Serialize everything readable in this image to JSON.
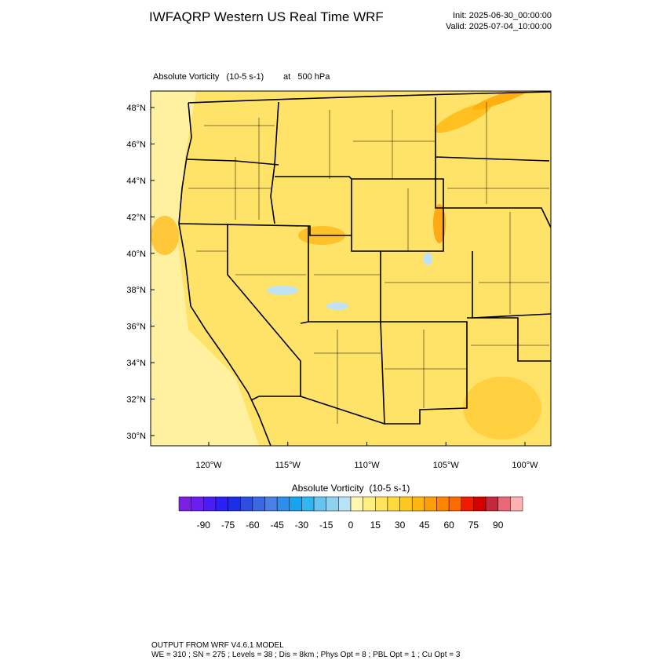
{
  "header": {
    "title": "IWFAQRP Western US Real Time WRF",
    "init": "Init: 2025-06-30_00:00:00",
    "valid": "Valid: 2025-07-04_10:00:00"
  },
  "plot": {
    "field_title": "Absolute Vorticity   (10-5 s-1)",
    "level_title": "at   500 hPa",
    "lat_ticks": [
      {
        "value": 48,
        "label": "48°N"
      },
      {
        "value": 46,
        "label": "46°N"
      },
      {
        "value": 44,
        "label": "44°N"
      },
      {
        "value": 42,
        "label": "42°N"
      },
      {
        "value": 40,
        "label": "40°N"
      },
      {
        "value": 38,
        "label": "38°N"
      },
      {
        "value": 36,
        "label": "36°N"
      },
      {
        "value": 34,
        "label": "34°N"
      },
      {
        "value": 32,
        "label": "32°N"
      },
      {
        "value": 30,
        "label": "30°N"
      }
    ],
    "lon_ticks": [
      {
        "value": -120,
        "label": "120°W"
      },
      {
        "value": -115,
        "label": "115°W"
      },
      {
        "value": -110,
        "label": "110°W"
      },
      {
        "value": -105,
        "label": "105°W"
      },
      {
        "value": -100,
        "label": "100°W"
      }
    ]
  },
  "colorbar": {
    "title": "Absolute Vorticity  (10-5 s-1)",
    "labels": [
      -90,
      -75,
      -60,
      -45,
      -30,
      -15,
      0,
      15,
      30,
      45,
      60,
      75,
      90
    ],
    "colors": [
      "#7b1fe0",
      "#6a1ef0",
      "#4b1df5",
      "#2a1ff5",
      "#1c2ee8",
      "#2c4fe0",
      "#3a68e0",
      "#4a7fe6",
      "#2f8fe8",
      "#1aa3ec",
      "#33b5f0",
      "#66c4ef",
      "#8fd2f0",
      "#b8e2f5",
      "#fff6b0",
      "#ffee80",
      "#ffe35a",
      "#ffd83a",
      "#ffc81e",
      "#ffb510",
      "#ff9e08",
      "#ff8500",
      "#ff6a00",
      "#f01a00",
      "#d40000",
      "#c4283c",
      "#e86878",
      "#ffb0b0"
    ]
  },
  "footer": {
    "line1": "OUTPUT FROM WRF V4.6.1 MODEL",
    "line2": "WE = 310 ; SN = 275 ; Levels = 38 ; Dis = 8km ; Phys Opt = 8 ; PBL Opt = 1 ; Cu Opt = 3"
  }
}
